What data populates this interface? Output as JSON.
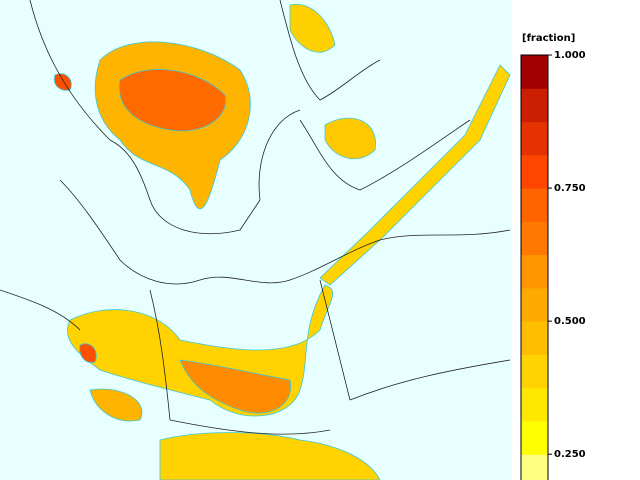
{
  "legend": {
    "title": "[fraction]",
    "lim": [
      0.1875,
      1.0
    ],
    "ticks": [
      {
        "value": 1.0,
        "label": "1.000"
      },
      {
        "value": 0.75,
        "label": "0.750"
      },
      {
        "value": 0.5,
        "label": "0.500"
      },
      {
        "value": 0.25,
        "label": "0.250"
      }
    ],
    "colors": [
      "#ffff80",
      "#ffff00",
      "#ffe800",
      "#ffd200",
      "#ffbe00",
      "#ffaa00",
      "#ff9600",
      "#ff7800",
      "#ff6400",
      "#ff4600",
      "#e63200",
      "#cc1e00",
      "#a00000"
    ]
  }
}
